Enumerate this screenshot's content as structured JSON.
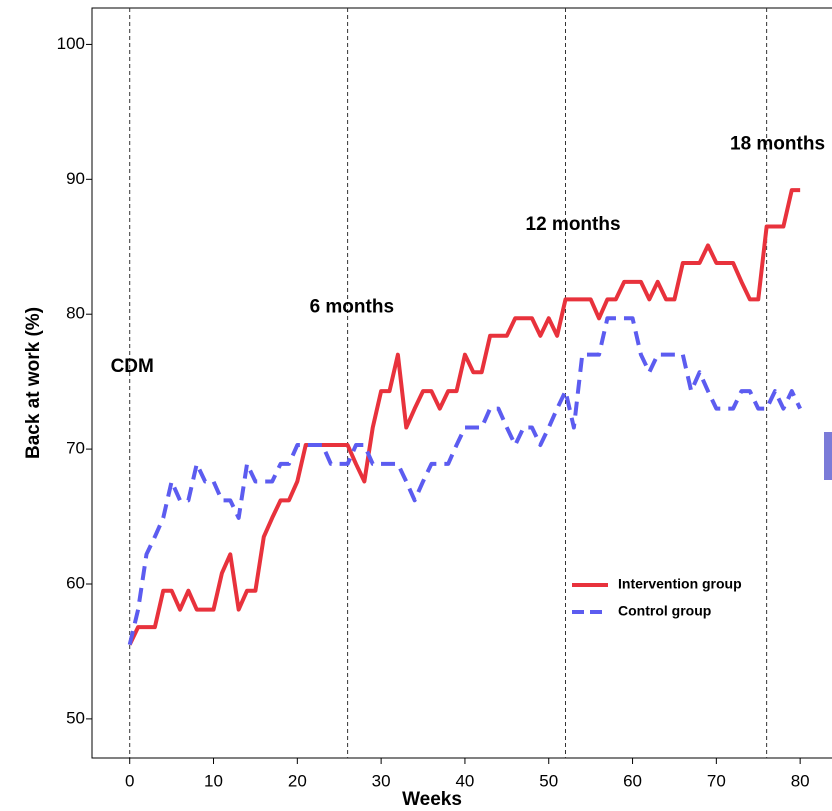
{
  "chart_data": {
    "type": "line",
    "x_label": "Weeks",
    "y_label": "Back at work (%)",
    "x": [
      0,
      1,
      2,
      3,
      4,
      5,
      6,
      7,
      8,
      9,
      10,
      11,
      12,
      13,
      14,
      15,
      16,
      17,
      18,
      19,
      20,
      21,
      22,
      23,
      24,
      25,
      26,
      27,
      28,
      29,
      30,
      31,
      32,
      33,
      34,
      35,
      36,
      37,
      38,
      39,
      40,
      41,
      42,
      43,
      44,
      45,
      46,
      47,
      48,
      49,
      50,
      51,
      52,
      53,
      54,
      55,
      56,
      57,
      58,
      59,
      60,
      61,
      62,
      63,
      64,
      65,
      66,
      67,
      68,
      69,
      70,
      71,
      72,
      73,
      74,
      75,
      76,
      77,
      78,
      79,
      80
    ],
    "series": [
      {
        "name": "Intervention group",
        "color": "#e8323c",
        "dash": false,
        "values": [
          55.5,
          56.8,
          56.8,
          56.8,
          59.5,
          59.5,
          58.1,
          59.5,
          58.1,
          58.1,
          58.1,
          60.8,
          62.2,
          58.1,
          59.5,
          59.5,
          63.5,
          64.9,
          66.2,
          66.2,
          67.6,
          70.3,
          70.3,
          70.3,
          70.3,
          70.3,
          70.3,
          68.9,
          67.6,
          71.6,
          74.3,
          74.3,
          77.0,
          71.6,
          73.0,
          74.3,
          74.3,
          73.0,
          74.3,
          74.3,
          77.0,
          75.7,
          75.7,
          78.4,
          78.4,
          78.4,
          79.7,
          79.7,
          79.7,
          78.4,
          79.7,
          78.4,
          81.1,
          81.1,
          81.1,
          81.1,
          79.7,
          81.1,
          81.1,
          82.4,
          82.4,
          82.4,
          81.1,
          82.4,
          81.1,
          81.1,
          83.8,
          83.8,
          83.8,
          85.1,
          83.8,
          83.8,
          83.8,
          82.4,
          81.1,
          81.1,
          86.5,
          86.5,
          86.5,
          89.2,
          89.2
        ]
      },
      {
        "name": "Control group",
        "color": "#5c5cf0",
        "dash": true,
        "values": [
          55.5,
          58.1,
          62.2,
          63.5,
          64.9,
          67.6,
          66.2,
          66.2,
          68.9,
          67.6,
          67.6,
          66.2,
          66.2,
          64.9,
          68.9,
          67.6,
          67.6,
          67.6,
          68.9,
          68.9,
          70.3,
          70.3,
          70.3,
          70.3,
          68.9,
          68.9,
          68.9,
          70.3,
          70.3,
          68.9,
          68.9,
          68.9,
          68.9,
          67.6,
          66.2,
          67.6,
          68.9,
          68.9,
          68.9,
          70.3,
          71.6,
          71.6,
          71.6,
          73.0,
          73.0,
          71.6,
          70.3,
          71.6,
          71.6,
          70.3,
          71.6,
          73.0,
          74.3,
          71.6,
          77.0,
          77.0,
          77.0,
          79.7,
          79.7,
          79.7,
          79.7,
          77.0,
          75.7,
          77.0,
          77.0,
          77.0,
          77.0,
          74.3,
          75.7,
          74.3,
          73.0,
          73.0,
          73.0,
          74.3,
          74.3,
          73.0,
          73.0,
          74.3,
          73.0,
          74.3,
          73.0
        ]
      }
    ],
    "vlines": [
      0,
      26,
      52,
      76
    ],
    "annotations": [
      {
        "text": "CDM",
        "x": 0.3,
        "y": 76.1
      },
      {
        "text": "6 months",
        "x": 26.5,
        "y": 80.5
      },
      {
        "text": "12 months",
        "x": 52.9,
        "y": 86.6
      },
      {
        "text": "18 months",
        "x": 77.3,
        "y": 92.6
      }
    ],
    "xlim": [
      -4.5,
      83.8
    ],
    "ylim": [
      47.1,
      102.7
    ],
    "xticks": [
      0,
      10,
      20,
      30,
      40,
      50,
      60,
      70,
      80
    ],
    "yticks": [
      50,
      60,
      70,
      80,
      90,
      100
    ]
  }
}
